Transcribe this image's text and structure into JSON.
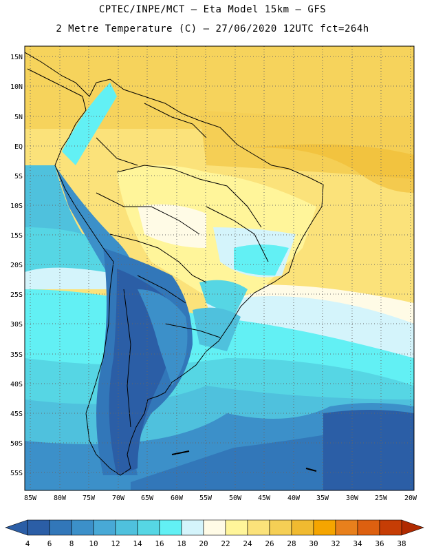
{
  "header": {
    "title_line1": "CPTEC/INPE/MCT –  Eta Model 15km – GFS",
    "title_line2": "2 Metre Temperature (C) – 27/06/2020 12UTC fct=264h"
  },
  "map": {
    "lat_labels": [
      "15N",
      "10N",
      "5N",
      "EQ",
      "5S",
      "10S",
      "15S",
      "20S",
      "25S",
      "30S",
      "35S",
      "40S",
      "45S",
      "50S",
      "55S"
    ],
    "lon_labels": [
      "85W",
      "80W",
      "75W",
      "70W",
      "65W",
      "60W",
      "55W",
      "50W",
      "45W",
      "40W",
      "35W",
      "30W",
      "25W",
      "20W"
    ]
  },
  "colorbar": {
    "labels": [
      "4",
      "6",
      "8",
      "10",
      "12",
      "14",
      "16",
      "18",
      "20",
      "22",
      "24",
      "26",
      "28",
      "30",
      "32",
      "34",
      "36",
      "38"
    ],
    "colors": [
      "#2b5ea6",
      "#3277b9",
      "#3c90c9",
      "#48a9d6",
      "#4fc1dd",
      "#56d6e4",
      "#62f0f4",
      "#d4f4fb",
      "#fffbe6",
      "#fff59a",
      "#fbe27a",
      "#f5cf55",
      "#f0ba30",
      "#f5a500",
      "#e8801c",
      "#dd6010",
      "#c63d05"
    ],
    "low_arrow_color": "#2b5ea6",
    "high_arrow_color": "#b02a00"
  }
}
